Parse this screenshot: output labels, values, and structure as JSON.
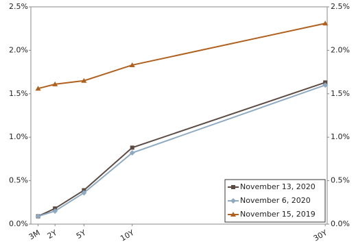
{
  "chart_data": {
    "type": "line",
    "x": [
      0.25,
      2,
      5,
      10,
      30
    ],
    "xlim": [
      -0.5,
      30.2
    ],
    "xticks": [
      {
        "value": 0.25,
        "label": "3M"
      },
      {
        "value": 2,
        "label": "2Y"
      },
      {
        "value": 5,
        "label": "5Y"
      },
      {
        "value": 10,
        "label": "10Y"
      },
      {
        "value": 30,
        "label": "30Y"
      }
    ],
    "ylim": [
      0,
      2.5
    ],
    "yticks": [
      {
        "value": 0,
        "label": "0.0%"
      },
      {
        "value": 0.5,
        "label": "0.5%"
      },
      {
        "value": 1,
        "label": "1.0%"
      },
      {
        "value": 1.5,
        "label": "1.5%"
      },
      {
        "value": 2,
        "label": "2.0%"
      },
      {
        "value": 2.5,
        "label": "2.5%"
      }
    ],
    "y2lim": [
      0,
      2.5
    ],
    "y2ticks": [
      {
        "value": 0,
        "label": "0.0%"
      },
      {
        "value": 0.5,
        "label": "0.5%"
      },
      {
        "value": 1,
        "label": "1.0%"
      },
      {
        "value": 1.5,
        "label": "1.5%"
      },
      {
        "value": 2,
        "label": "2.0%"
      },
      {
        "value": 2.5,
        "label": "2.5%"
      }
    ],
    "legend": "lower right",
    "series": [
      {
        "name": "November 13, 2020",
        "color": "#5c4b43",
        "marker": "square",
        "values": [
          0.09,
          0.18,
          0.39,
          0.88,
          1.63
        ]
      },
      {
        "name": "November 6, 2020",
        "color": "#8eaac2",
        "marker": "diamond",
        "values": [
          0.09,
          0.15,
          0.36,
          0.82,
          1.6
        ]
      },
      {
        "name": "November 15, 2019",
        "color": "#b0601c",
        "marker": "triangle",
        "values": [
          1.56,
          1.61,
          1.65,
          1.83,
          2.31
        ]
      }
    ]
  }
}
